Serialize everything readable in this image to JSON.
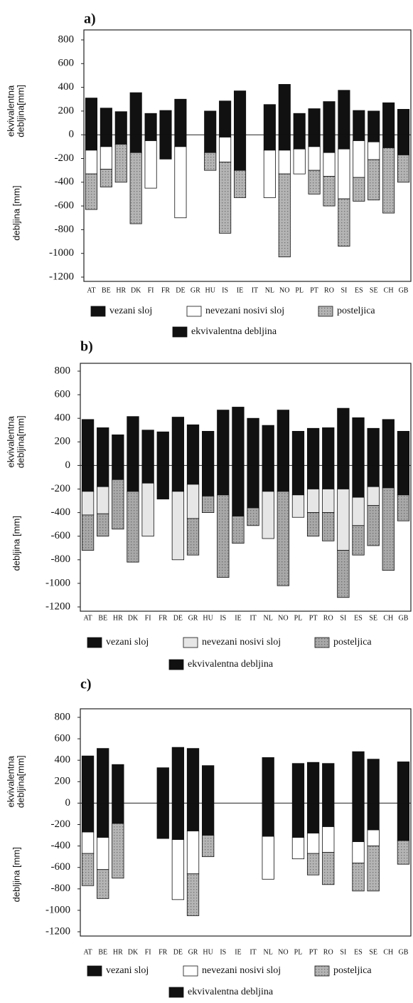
{
  "chart_data": [
    {
      "type": "bar",
      "panel_label": "a)",
      "y_label_upper": [
        "ekvivalentna",
        "debljina[mm]"
      ],
      "y_label_lower": "debljina [mm]",
      "categories": [
        "AT",
        "BE",
        "HR",
        "DK",
        "FI",
        "FR",
        "DE",
        "GR",
        "HU",
        "IS",
        "IE",
        "IT",
        "NL",
        "NO",
        "PL",
        "PT",
        "RO",
        "SI",
        "ES",
        "SE",
        "CH",
        "GB"
      ],
      "ylim": [
        -1200,
        800
      ],
      "yticks": [
        -1200,
        -1000,
        -800,
        -600,
        -400,
        -200,
        0,
        200,
        400,
        600,
        800
      ],
      "series": [
        {
          "name": "vezani sloj",
          "color": "#111111",
          "values": [
            -130,
            -100,
            -80,
            -150,
            -50,
            -205,
            -100,
            null,
            -150,
            -20,
            -300,
            null,
            -130,
            -130,
            -120,
            -100,
            -150,
            -120,
            -50,
            -60,
            -110,
            -170
          ]
        },
        {
          "name": "nevezani nosivi sloj",
          "color": "#ffffff",
          "values": [
            -200,
            -190,
            null,
            null,
            -400,
            null,
            -600,
            null,
            null,
            -210,
            null,
            null,
            -400,
            -200,
            -210,
            -200,
            -200,
            -420,
            -310,
            -150,
            null,
            null
          ]
        },
        {
          "name": "posteljica",
          "color": "#b4b4b4",
          "values": [
            -300,
            -150,
            -320,
            -600,
            null,
            null,
            null,
            null,
            -150,
            -600,
            -230,
            null,
            null,
            -700,
            null,
            -200,
            -250,
            -400,
            -200,
            -340,
            -550,
            -230
          ]
        },
        {
          "name": "ekvivalentna debljina",
          "color": "#111111",
          "values": [
            310,
            225,
            195,
            355,
            180,
            205,
            300,
            null,
            200,
            285,
            370,
            null,
            255,
            425,
            180,
            220,
            280,
            375,
            205,
            200,
            270,
            215
          ]
        }
      ]
    },
    {
      "type": "bar",
      "panel_label": "b)",
      "y_label_upper": [
        "ekvivalentna",
        "debljina[mm]"
      ],
      "y_label_lower": "debljina [mm]",
      "categories": [
        "AT",
        "BE",
        "HR",
        "DK",
        "FI",
        "FR",
        "DE",
        "GR",
        "HU",
        "IS",
        "IE",
        "IT",
        "NL",
        "NO",
        "PL",
        "PT",
        "RO",
        "SI",
        "ES",
        "SE",
        "CH",
        "GB"
      ],
      "ylim": [
        -1200,
        800
      ],
      "yticks": [
        -1200,
        -1000,
        -800,
        -600,
        -400,
        -200,
        0,
        200,
        400,
        600,
        800
      ],
      "series": [
        {
          "name": "vezani sloj",
          "color": "#111111",
          "values": [
            -220,
            -180,
            -120,
            -220,
            -150,
            -285,
            -220,
            -160,
            -260,
            -250,
            -430,
            -360,
            -220,
            -220,
            -250,
            -200,
            -200,
            -200,
            -270,
            -180,
            -190,
            -250
          ]
        },
        {
          "name": "nevezani nosivi sloj",
          "color": "#e6e6e6",
          "values": [
            -200,
            -230,
            null,
            null,
            -450,
            null,
            -580,
            -290,
            null,
            null,
            null,
            null,
            -400,
            null,
            -190,
            -200,
            -200,
            -520,
            -240,
            -160,
            null,
            null
          ]
        },
        {
          "name": "posteljica",
          "color": "#a8a8a8",
          "values": [
            -300,
            -190,
            -420,
            -600,
            null,
            null,
            null,
            -310,
            -140,
            -700,
            -230,
            -150,
            null,
            -800,
            null,
            -200,
            -240,
            -400,
            -250,
            -340,
            -700,
            -220
          ]
        },
        {
          "name": "ekvivalentna debljina",
          "color": "#111111",
          "values": [
            390,
            320,
            260,
            415,
            300,
            285,
            410,
            345,
            290,
            470,
            495,
            400,
            340,
            470,
            290,
            315,
            320,
            485,
            405,
            315,
            390,
            290
          ]
        }
      ]
    },
    {
      "type": "bar",
      "panel_label": "c)",
      "y_label_upper": [
        "ekvivalentna",
        "debljina[mm]"
      ],
      "y_label_lower": "debljina [mm]",
      "categories": [
        "AT",
        "BE",
        "HR",
        "DK",
        "FI",
        "FR",
        "DE",
        "GR",
        "HU",
        "IS",
        "IE",
        "IT",
        "NL",
        "NO",
        "PL",
        "PT",
        "RO",
        "SI",
        "ES",
        "SE",
        "CH",
        "GB"
      ],
      "ylim": [
        -1200,
        800
      ],
      "yticks": [
        -1200,
        -1000,
        -800,
        -600,
        -400,
        -200,
        0,
        200,
        400,
        600,
        800
      ],
      "series": [
        {
          "name": "vezani sloj",
          "color": "#111111",
          "values": [
            -270,
            -320,
            -190,
            null,
            null,
            -330,
            -340,
            -260,
            -300,
            null,
            null,
            null,
            -310,
            null,
            -320,
            -280,
            -220,
            null,
            -360,
            -250,
            null,
            -350
          ]
        },
        {
          "name": "nevezani nosivi sloj",
          "color": "#ffffff",
          "values": [
            -200,
            -300,
            null,
            null,
            null,
            null,
            -560,
            -400,
            null,
            null,
            null,
            null,
            -400,
            null,
            -200,
            -190,
            -240,
            null,
            -200,
            -150,
            null,
            null
          ]
        },
        {
          "name": "posteljica",
          "color": "#b4b4b4",
          "values": [
            -300,
            -270,
            -510,
            null,
            null,
            null,
            null,
            -390,
            -200,
            null,
            null,
            null,
            null,
            null,
            null,
            -200,
            -300,
            null,
            -260,
            -420,
            null,
            -220
          ]
        },
        {
          "name": "ekvivalentna debljina",
          "color": "#111111",
          "values": [
            440,
            510,
            360,
            null,
            null,
            330,
            520,
            510,
            350,
            null,
            null,
            null,
            425,
            null,
            370,
            380,
            370,
            null,
            480,
            410,
            null,
            385
          ]
        }
      ]
    }
  ]
}
